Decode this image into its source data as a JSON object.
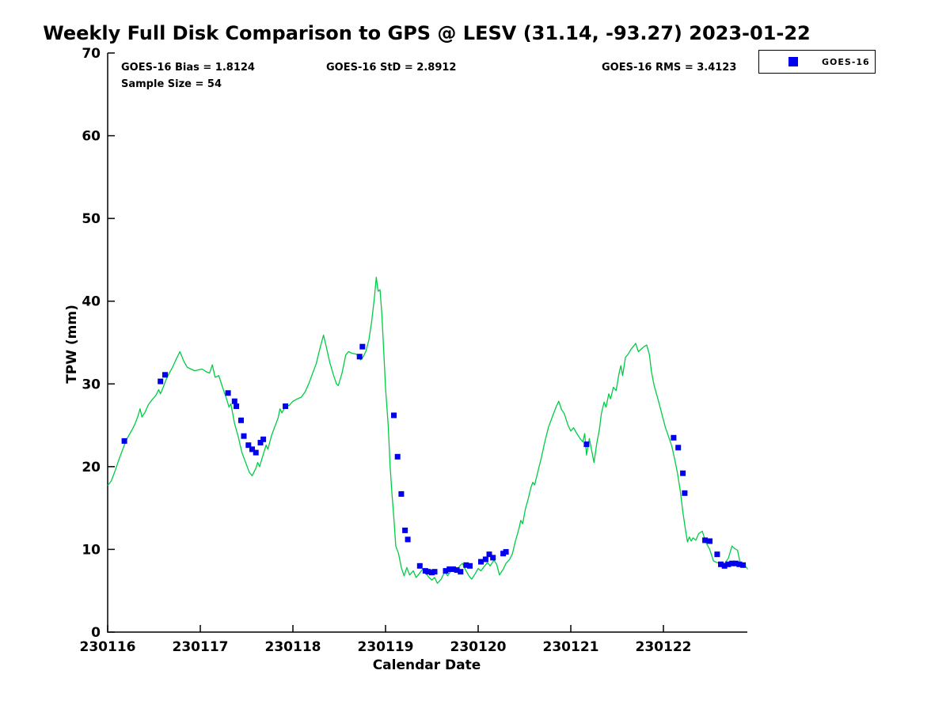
{
  "header": {
    "title": "Weekly Full Disk Comparison to GPS @ LESV (31.14, -93.27) 2023-01-22"
  },
  "stats": {
    "bias": "GOES-16 Bias = 1.8124",
    "std": "GOES-16 StD = 2.8912",
    "rms": "GOES-16 RMS = 3.4123",
    "sample_size": "Sample Size = 54"
  },
  "legend": {
    "label": "GOES-16",
    "marker_color": "#0000ee",
    "position": "top-right-outside"
  },
  "colors": {
    "gps_line": "#00cc44",
    "goes16_marker": "#0000ee",
    "axis": "#000000",
    "background": "#ffffff"
  },
  "chart_data": {
    "type": "line+scatter",
    "title": "Weekly Full Disk Comparison to GPS @ LESV (31.14, -93.27) 2023-01-22",
    "xlabel": "Calendar Date",
    "ylabel": "TPW (mm)",
    "ylim": [
      0,
      70
    ],
    "y_ticks": [
      0,
      10,
      20,
      30,
      40,
      50,
      60,
      70
    ],
    "x_tick_labels": [
      "230116",
      "230117",
      "230118",
      "230119",
      "230120",
      "230121",
      "230122"
    ],
    "x_tick_days": [
      0,
      1,
      2,
      3,
      4,
      5,
      6
    ],
    "xlim_days": [
      0,
      6.95
    ],
    "grid": false,
    "series": [
      {
        "name": "GPS",
        "type": "line",
        "color": "#00cc44",
        "points": [
          [
            0.0,
            17.7
          ],
          [
            0.04,
            18.3
          ],
          [
            0.08,
            19.5
          ],
          [
            0.12,
            20.8
          ],
          [
            0.16,
            22.0
          ],
          [
            0.2,
            23.2
          ],
          [
            0.24,
            24.0
          ],
          [
            0.27,
            24.6
          ],
          [
            0.3,
            25.3
          ],
          [
            0.33,
            26.2
          ],
          [
            0.35,
            27.0
          ],
          [
            0.37,
            26.0
          ],
          [
            0.4,
            26.5
          ],
          [
            0.44,
            27.5
          ],
          [
            0.48,
            28.1
          ],
          [
            0.52,
            28.6
          ],
          [
            0.55,
            29.3
          ],
          [
            0.57,
            28.8
          ],
          [
            0.6,
            29.6
          ],
          [
            0.63,
            30.5
          ],
          [
            0.66,
            31.2
          ],
          [
            0.7,
            32.0
          ],
          [
            0.74,
            33.0
          ],
          [
            0.78,
            33.9
          ],
          [
            0.82,
            32.8
          ],
          [
            0.86,
            32.0
          ],
          [
            0.9,
            31.8
          ],
          [
            0.94,
            31.6
          ],
          [
            0.98,
            31.7
          ],
          [
            1.02,
            31.8
          ],
          [
            1.06,
            31.5
          ],
          [
            1.1,
            31.3
          ],
          [
            1.13,
            32.3
          ],
          [
            1.16,
            30.8
          ],
          [
            1.2,
            31.0
          ],
          [
            1.24,
            29.6
          ],
          [
            1.28,
            28.3
          ],
          [
            1.31,
            27.2
          ],
          [
            1.33,
            27.6
          ],
          [
            1.37,
            25.2
          ],
          [
            1.41,
            23.6
          ],
          [
            1.45,
            21.7
          ],
          [
            1.49,
            20.5
          ],
          [
            1.53,
            19.3
          ],
          [
            1.56,
            18.9
          ],
          [
            1.6,
            19.8
          ],
          [
            1.62,
            20.5
          ],
          [
            1.64,
            20.0
          ],
          [
            1.68,
            21.5
          ],
          [
            1.71,
            22.6
          ],
          [
            1.73,
            22.1
          ],
          [
            1.77,
            23.8
          ],
          [
            1.81,
            25.0
          ],
          [
            1.84,
            25.9
          ],
          [
            1.86,
            27.0
          ],
          [
            1.88,
            26.5
          ],
          [
            1.92,
            27.3
          ],
          [
            1.96,
            27.4
          ],
          [
            2.0,
            27.9
          ],
          [
            2.05,
            28.2
          ],
          [
            2.09,
            28.4
          ],
          [
            2.13,
            29.0
          ],
          [
            2.17,
            30.0
          ],
          [
            2.21,
            31.2
          ],
          [
            2.25,
            32.4
          ],
          [
            2.29,
            34.2
          ],
          [
            2.33,
            35.9
          ],
          [
            2.36,
            34.5
          ],
          [
            2.4,
            32.5
          ],
          [
            2.44,
            31.0
          ],
          [
            2.47,
            30.0
          ],
          [
            2.49,
            29.8
          ],
          [
            2.53,
            31.3
          ],
          [
            2.57,
            33.5
          ],
          [
            2.6,
            33.9
          ],
          [
            2.64,
            33.7
          ],
          [
            2.68,
            33.6
          ],
          [
            2.71,
            33.4
          ],
          [
            2.73,
            32.9
          ],
          [
            2.76,
            33.3
          ],
          [
            2.79,
            34.0
          ],
          [
            2.82,
            35.3
          ],
          [
            2.85,
            37.5
          ],
          [
            2.88,
            40.5
          ],
          [
            2.9,
            42.9
          ],
          [
            2.92,
            41.2
          ],
          [
            2.94,
            41.4
          ],
          [
            2.96,
            38.5
          ],
          [
            2.98,
            34.0
          ],
          [
            3.0,
            29.5
          ],
          [
            3.03,
            24.8
          ],
          [
            3.05,
            20.0
          ],
          [
            3.07,
            16.6
          ],
          [
            3.09,
            13.8
          ],
          [
            3.11,
            10.4
          ],
          [
            3.14,
            9.5
          ],
          [
            3.17,
            7.8
          ],
          [
            3.2,
            6.8
          ],
          [
            3.23,
            7.8
          ],
          [
            3.26,
            6.9
          ],
          [
            3.3,
            7.4
          ],
          [
            3.33,
            6.6
          ],
          [
            3.36,
            7.0
          ],
          [
            3.4,
            7.6
          ],
          [
            3.43,
            7.2
          ],
          [
            3.47,
            6.6
          ],
          [
            3.5,
            6.3
          ],
          [
            3.53,
            6.6
          ],
          [
            3.56,
            5.9
          ],
          [
            3.6,
            6.4
          ],
          [
            3.64,
            7.3
          ],
          [
            3.67,
            6.8
          ],
          [
            3.7,
            7.3
          ],
          [
            3.74,
            7.9
          ],
          [
            3.77,
            7.4
          ],
          [
            3.8,
            8.0
          ],
          [
            3.83,
            8.3
          ],
          [
            3.86,
            7.6
          ],
          [
            3.9,
            6.8
          ],
          [
            3.93,
            6.4
          ],
          [
            3.97,
            7.1
          ],
          [
            4.0,
            7.7
          ],
          [
            4.03,
            7.4
          ],
          [
            4.07,
            8.0
          ],
          [
            4.1,
            8.4
          ],
          [
            4.13,
            8.0
          ],
          [
            4.17,
            8.7
          ],
          [
            4.2,
            8.2
          ],
          [
            4.23,
            6.9
          ],
          [
            4.27,
            7.6
          ],
          [
            4.3,
            8.3
          ],
          [
            4.34,
            8.8
          ],
          [
            4.37,
            9.5
          ],
          [
            4.4,
            10.9
          ],
          [
            4.44,
            12.5
          ],
          [
            4.46,
            13.5
          ],
          [
            4.48,
            13.1
          ],
          [
            4.51,
            14.9
          ],
          [
            4.54,
            16.1
          ],
          [
            4.57,
            17.5
          ],
          [
            4.59,
            18.1
          ],
          [
            4.61,
            17.8
          ],
          [
            4.64,
            19.2
          ],
          [
            4.68,
            21.0
          ],
          [
            4.72,
            23.0
          ],
          [
            4.76,
            24.8
          ],
          [
            4.8,
            26.0
          ],
          [
            4.84,
            27.2
          ],
          [
            4.87,
            27.9
          ],
          [
            4.9,
            26.9
          ],
          [
            4.93,
            26.4
          ],
          [
            4.97,
            25.0
          ],
          [
            5.0,
            24.3
          ],
          [
            5.03,
            24.7
          ],
          [
            5.06,
            24.1
          ],
          [
            5.1,
            23.4
          ],
          [
            5.13,
            23.0
          ],
          [
            5.15,
            24.0
          ],
          [
            5.17,
            21.4
          ],
          [
            5.2,
            23.4
          ],
          [
            5.25,
            20.5
          ],
          [
            5.28,
            22.8
          ],
          [
            5.31,
            24.6
          ],
          [
            5.33,
            26.4
          ],
          [
            5.36,
            27.8
          ],
          [
            5.38,
            27.2
          ],
          [
            5.41,
            28.8
          ],
          [
            5.43,
            28.2
          ],
          [
            5.46,
            29.6
          ],
          [
            5.49,
            29.2
          ],
          [
            5.52,
            31.2
          ],
          [
            5.54,
            32.2
          ],
          [
            5.56,
            31.0
          ],
          [
            5.59,
            33.2
          ],
          [
            5.62,
            33.6
          ],
          [
            5.65,
            34.2
          ],
          [
            5.68,
            34.6
          ],
          [
            5.7,
            34.9
          ],
          [
            5.73,
            33.9
          ],
          [
            5.76,
            34.2
          ],
          [
            5.79,
            34.5
          ],
          [
            5.82,
            34.7
          ],
          [
            5.85,
            33.5
          ],
          [
            5.87,
            31.5
          ],
          [
            5.9,
            29.8
          ],
          [
            5.94,
            28.2
          ],
          [
            5.98,
            26.5
          ],
          [
            6.02,
            24.8
          ],
          [
            6.06,
            23.5
          ],
          [
            6.09,
            22.5
          ],
          [
            6.12,
            21.0
          ],
          [
            6.15,
            19.3
          ],
          [
            6.18,
            17.2
          ],
          [
            6.21,
            14.5
          ],
          [
            6.24,
            12.2
          ],
          [
            6.26,
            10.9
          ],
          [
            6.28,
            11.5
          ],
          [
            6.3,
            11.0
          ],
          [
            6.32,
            11.4
          ],
          [
            6.35,
            11.1
          ],
          [
            6.38,
            11.9
          ],
          [
            6.42,
            12.2
          ],
          [
            6.46,
            10.8
          ],
          [
            6.5,
            10.0
          ],
          [
            6.54,
            8.6
          ],
          [
            6.58,
            8.4
          ],
          [
            6.62,
            8.3
          ],
          [
            6.66,
            8.3
          ],
          [
            6.7,
            8.9
          ],
          [
            6.74,
            10.4
          ],
          [
            6.77,
            10.1
          ],
          [
            6.8,
            9.9
          ],
          [
            6.83,
            8.3
          ],
          [
            6.86,
            8.0
          ],
          [
            6.89,
            7.9
          ],
          [
            6.91,
            7.6
          ]
        ]
      },
      {
        "name": "GOES-16",
        "type": "scatter",
        "color": "#0000ee",
        "marker": "square",
        "points": [
          [
            0.18,
            23.1
          ],
          [
            0.57,
            30.3
          ],
          [
            0.62,
            31.1
          ],
          [
            1.3,
            28.9
          ],
          [
            1.37,
            27.9
          ],
          [
            1.39,
            27.3
          ],
          [
            1.44,
            25.6
          ],
          [
            1.47,
            23.7
          ],
          [
            1.52,
            22.6
          ],
          [
            1.56,
            22.1
          ],
          [
            1.6,
            21.7
          ],
          [
            1.65,
            22.9
          ],
          [
            1.68,
            23.3
          ],
          [
            1.92,
            27.3
          ],
          [
            2.72,
            33.3
          ],
          [
            2.75,
            34.5
          ],
          [
            3.09,
            26.2
          ],
          [
            3.13,
            21.2
          ],
          [
            3.17,
            16.7
          ],
          [
            3.21,
            12.3
          ],
          [
            3.24,
            11.2
          ],
          [
            3.37,
            8.0
          ],
          [
            3.43,
            7.4
          ],
          [
            3.46,
            7.3
          ],
          [
            3.5,
            7.2
          ],
          [
            3.53,
            7.3
          ],
          [
            3.65,
            7.4
          ],
          [
            3.69,
            7.6
          ],
          [
            3.73,
            7.6
          ],
          [
            3.77,
            7.5
          ],
          [
            3.81,
            7.3
          ],
          [
            3.87,
            8.1
          ],
          [
            3.91,
            8.0
          ],
          [
            4.03,
            8.5
          ],
          [
            4.08,
            8.8
          ],
          [
            4.12,
            9.4
          ],
          [
            4.16,
            9.0
          ],
          [
            4.27,
            9.5
          ],
          [
            4.3,
            9.7
          ],
          [
            5.17,
            22.7
          ],
          [
            6.11,
            23.5
          ],
          [
            6.16,
            22.3
          ],
          [
            6.21,
            19.2
          ],
          [
            6.23,
            16.8
          ],
          [
            6.45,
            11.1
          ],
          [
            6.5,
            11.0
          ],
          [
            6.58,
            9.4
          ],
          [
            6.62,
            8.2
          ],
          [
            6.66,
            8.0
          ],
          [
            6.7,
            8.2
          ],
          [
            6.74,
            8.3
          ],
          [
            6.78,
            8.3
          ],
          [
            6.82,
            8.2
          ],
          [
            6.86,
            8.1
          ]
        ]
      }
    ]
  }
}
